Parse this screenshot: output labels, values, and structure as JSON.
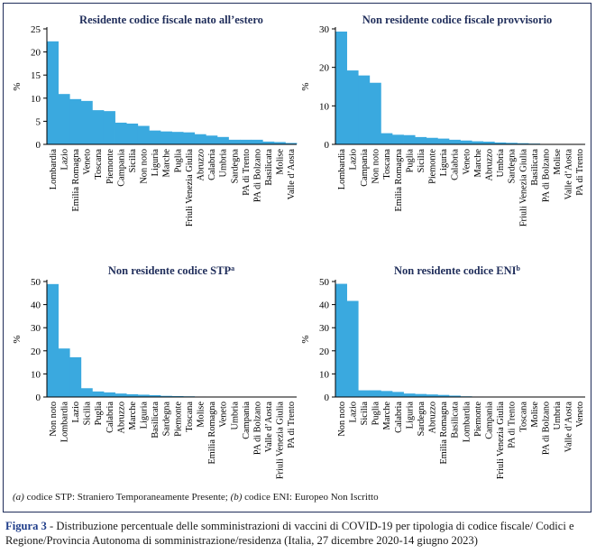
{
  "chart_data": [
    {
      "type": "bar",
      "title": "Residente codice fiscale nato all’estero",
      "title_sup": "",
      "ylabel": "%",
      "ylim": [
        0,
        25
      ],
      "yticks": [
        0,
        5,
        10,
        15,
        20,
        25
      ],
      "color": "#3aa9df",
      "categories": [
        "Lombardia",
        "Lazio",
        "Emilia Romagna",
        "Veneto",
        "Toscana",
        "Piemonte",
        "Campania",
        "Sicilia",
        "Non noto",
        "Liguria",
        "Marche",
        "Puglia",
        "Friuli Venezia Giulia",
        "Abruzzo",
        "Calabria",
        "Umbria",
        "Sardegna",
        "PA di Trento",
        "PA di Bolzano",
        "Basilicata",
        "Molise",
        "Valle d’Aosta"
      ],
      "values": [
        22.3,
        10.9,
        9.8,
        9.4,
        7.4,
        7.2,
        4.7,
        4.5,
        4.0,
        3.0,
        2.8,
        2.7,
        2.6,
        2.2,
        1.9,
        1.6,
        1.0,
        1.0,
        1.0,
        0.6,
        0.5,
        0.3
      ]
    },
    {
      "type": "bar",
      "title": "Non residente codice fiscale provvisorio",
      "title_sup": "",
      "ylabel": "%",
      "ylim": [
        0,
        30
      ],
      "yticks": [
        0,
        10,
        20,
        30
      ],
      "color": "#3aa9df",
      "categories": [
        "Lombardia",
        "Lazio",
        "Campania",
        "Non noto",
        "Toscana",
        "Emilia Romagna",
        "Puglia",
        "Sicilia",
        "Piemonte",
        "Liguria",
        "Calabria",
        "Veneto",
        "Marche",
        "Abruzzo",
        "Umbria",
        "Sardegna",
        "Friuli Venezia Giulia",
        "Basilicata",
        "PA di Bolzano",
        "Molise",
        "Valle d’Aosta",
        "PA di Trento"
      ],
      "values": [
        29.3,
        19.2,
        17.9,
        16.0,
        2.9,
        2.5,
        2.4,
        1.9,
        1.7,
        1.5,
        1.2,
        1.0,
        0.8,
        0.7,
        0.5,
        0.4,
        0.3,
        0.2,
        0.1,
        0.1,
        0.1,
        0.05
      ]
    },
    {
      "type": "bar",
      "title": "Non residente codice STP",
      "title_sup": "a",
      "ylabel": "%",
      "ylim": [
        0,
        50
      ],
      "yticks": [
        0,
        10,
        20,
        30,
        40,
        50
      ],
      "color": "#3aa9df",
      "categories": [
        "Non noto",
        "Lombardia",
        "Lazio",
        "Sicilia",
        "Puglia",
        "Calabria",
        "Abruzzo",
        "Marche",
        "Liguria",
        "Basilicata",
        "Sardegna",
        "Piemonte",
        "Toscana",
        "Molise",
        "Emilia Romagna",
        "Veneto",
        "Umbria",
        "Campania",
        "PA di Bolzano",
        "Valle d’Aosta",
        "Friuli Venezia Giulia",
        "PA di Trento"
      ],
      "values": [
        48.9,
        21.0,
        17.2,
        3.8,
        2.4,
        2.0,
        1.5,
        1.2,
        1.0,
        0.8,
        0.5,
        0.4,
        0.3,
        0.2,
        0.1,
        0.1,
        0.05,
        0.05,
        0.05,
        0.0,
        0.0,
        0.0
      ]
    },
    {
      "type": "bar",
      "title": "Non residente codice ENI",
      "title_sup": "b",
      "ylabel": "%",
      "ylim": [
        0,
        50
      ],
      "yticks": [
        0,
        10,
        20,
        30,
        40,
        50
      ],
      "color": "#3aa9df",
      "categories": [
        "Non noto",
        "Lazio",
        "Sicilia",
        "Puglia",
        "Marche",
        "Calabria",
        "Liguria",
        "Sardegna",
        "Abruzzo",
        "Emilia Romagna",
        "Basilicata",
        "Lombardia",
        "Piemonte",
        "Campania",
        "Friuli Venezia Giulia",
        "PA di Trento",
        "Toscana",
        "Molise",
        "PA di Bolzano",
        "Umbria",
        "Valle d’Aosta",
        "Veneto"
      ],
      "values": [
        49.0,
        41.6,
        2.9,
        2.9,
        2.6,
        2.2,
        1.5,
        1.3,
        1.1,
        0.9,
        0.6,
        0.3,
        0.2,
        0.1,
        0.1,
        0.05,
        0.05,
        0.0,
        0.0,
        0.0,
        0.0,
        0.0
      ]
    }
  ],
  "footnote": {
    "a_marker": "(a)",
    "a_text": " codice STP: Straniero Temporaneamente Presente; ",
    "b_marker": "(b)",
    "b_text": " codice ENI: Europeo Non Iscritto"
  },
  "caption": {
    "figure_label": "Figura 3",
    "text": " - Distribuzione percentuale delle somministrazioni di vaccini di COVID-19 per tipologia di codice fiscale/ Codici e Regione/Provincia Autonoma di somministrazione/residenza (Italia, 27 dicembre 2020-14 giugno 2023)"
  }
}
